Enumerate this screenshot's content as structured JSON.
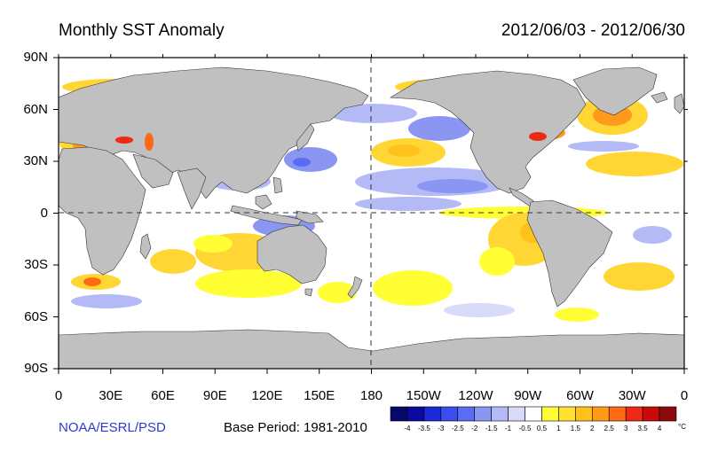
{
  "title_left": "Monthly SST Anomaly",
  "title_right": "2012/06/03 - 2012/06/30",
  "credit": "NOAA/ESRL/PSD",
  "base_period": "Base Period: 1981-2010",
  "latitude_labels": [
    "90N",
    "60N",
    "30N",
    "0",
    "30S",
    "60S",
    "90S"
  ],
  "longitude_labels": [
    "0",
    "30E",
    "60E",
    "90E",
    "120E",
    "150E",
    "180",
    "150W",
    "120W",
    "90W",
    "60W",
    "30W",
    "0"
  ],
  "colorbar": {
    "ticks": [
      "-4",
      "-3.5",
      "-3",
      "-2.5",
      "-2",
      "-1.5",
      "-1",
      "-0.5",
      "0.5",
      "1",
      "1.5",
      "2",
      "2.5",
      "3",
      "3.5",
      "4"
    ],
    "unit": "°C",
    "colors": [
      "#08086b",
      "#0a0aa0",
      "#1a2ad6",
      "#3a4ef0",
      "#5a6cf2",
      "#8a96f2",
      "#b4baf6",
      "#d8daf8",
      "#ffffff",
      "#ffff33",
      "#ffe033",
      "#ffc21a",
      "#ff9a1a",
      "#ff6a14",
      "#ee2a14",
      "#c80a0a",
      "#8c0a0a"
    ]
  },
  "colors": {
    "land": "#c0c0c0",
    "ocean": "#ffffff",
    "warm": "#ffd633",
    "cool": "#8a96f2"
  }
}
